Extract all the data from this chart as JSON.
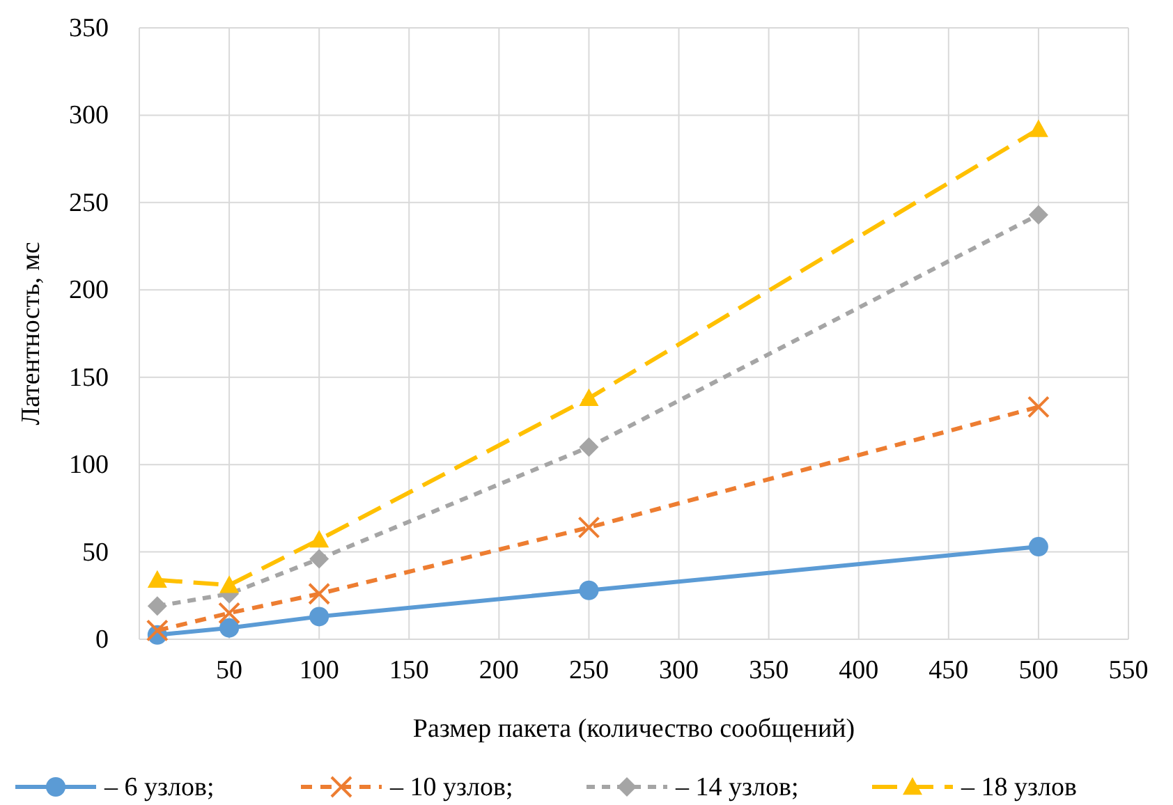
{
  "chart_data": {
    "type": "line",
    "xlabel": "Размер пакета (количество сообщений)",
    "ylabel": "Латентность, мс",
    "x": [
      10,
      50,
      100,
      250,
      500
    ],
    "xlim": [
      0,
      550
    ],
    "xticks": [
      {
        "value": 0,
        "label": null
      },
      50,
      100,
      150,
      200,
      250,
      300,
      350,
      400,
      450,
      500,
      550
    ],
    "ylim": [
      0,
      350
    ],
    "yticks": [
      0,
      50,
      100,
      150,
      200,
      250,
      300,
      350
    ],
    "grid": true,
    "legend": "bottom",
    "series": [
      {
        "name": "– 6 узлов;",
        "color": "#5b9bd5",
        "marker": "circle",
        "line_style": "solid",
        "values": [
          2.5,
          6.5,
          13,
          28,
          53
        ]
      },
      {
        "name": "– 10 узлов;",
        "color": "#ed7d31",
        "marker": "cross",
        "line_style": "dashed",
        "values": [
          5,
          15,
          26,
          64,
          133
        ]
      },
      {
        "name": "– 14 узлов;",
        "color": "#a5a5a5",
        "marker": "diamond",
        "line_style": "dashed",
        "values": [
          19,
          26,
          46,
          110,
          243
        ]
      },
      {
        "name": "– 18 узлов",
        "color": "#ffc000",
        "marker": "triangle",
        "line_style": "dashed",
        "values": [
          34,
          31,
          57,
          138,
          292
        ]
      }
    ]
  }
}
